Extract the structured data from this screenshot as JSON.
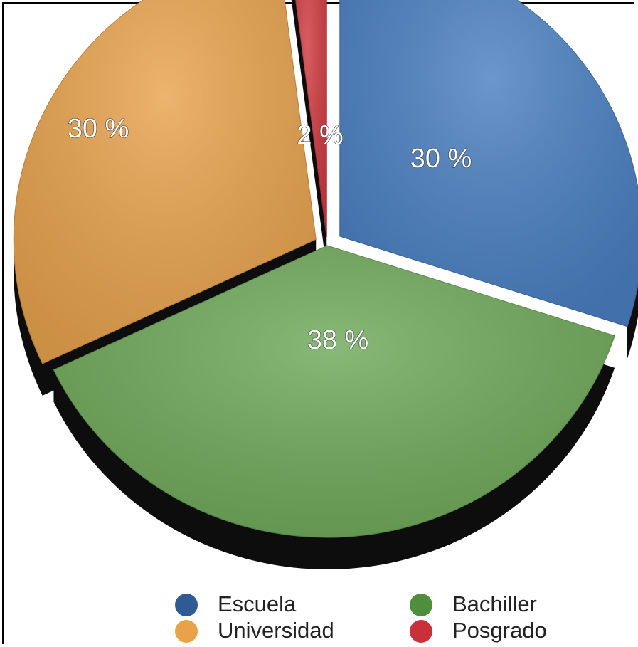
{
  "chart_data": {
    "type": "pie",
    "title": "",
    "slices": [
      {
        "label": "Escuela",
        "value": 30,
        "data_label": "30 %",
        "color": "#4a7fc1"
      },
      {
        "label": "Bachiller",
        "value": 38,
        "data_label": "38 %",
        "color": "#6fa95a"
      },
      {
        "label": "Universidad",
        "value": 30,
        "data_label": "30 %",
        "color": "#e8a34e"
      },
      {
        "label": "Posgrado",
        "value": 2,
        "data_label": "2 %",
        "color": "#cf3a40"
      }
    ],
    "legend_position": "bottom",
    "exploded": true,
    "three_d": true
  },
  "legend": {
    "items": [
      {
        "label": "Escuela",
        "color": "#2e5b94"
      },
      {
        "label": "Bachiller",
        "color": "#4f8f3c"
      },
      {
        "label": "Universidad",
        "color": "#eaa24a"
      },
      {
        "label": "Posgrado",
        "color": "#c9303a"
      }
    ]
  }
}
